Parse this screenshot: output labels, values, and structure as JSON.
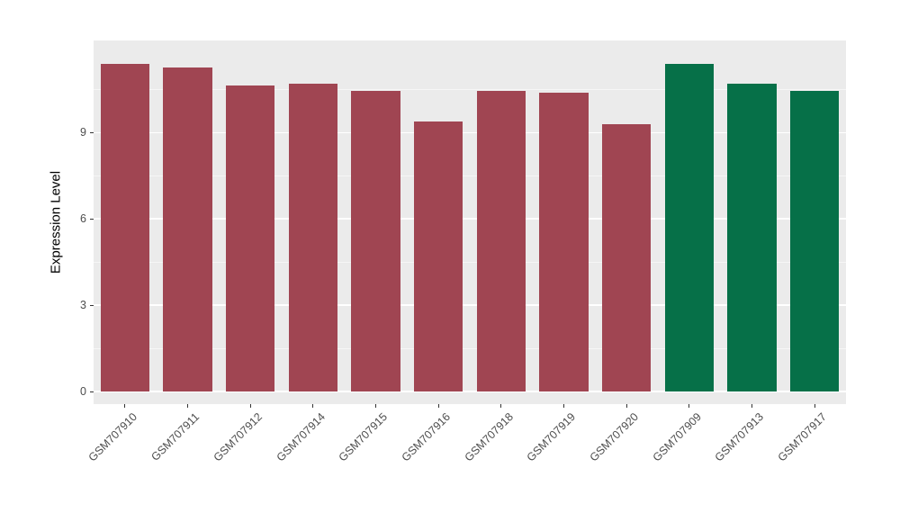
{
  "chart_data": {
    "type": "bar",
    "title": "",
    "xlabel": "",
    "ylabel": "Expression Level",
    "categories": [
      "GSM707910",
      "GSM707911",
      "GSM707912",
      "GSM707914",
      "GSM707915",
      "GSM707916",
      "GSM707918",
      "GSM707919",
      "GSM707920",
      "GSM707909",
      "GSM707913",
      "GSM707917"
    ],
    "values": [
      11.4,
      11.25,
      10.65,
      10.7,
      10.45,
      9.4,
      10.45,
      10.4,
      9.3,
      11.4,
      10.7,
      10.45
    ],
    "groups": [
      "red",
      "red",
      "red",
      "red",
      "red",
      "red",
      "red",
      "red",
      "red",
      "green",
      "green",
      "green"
    ],
    "colors": {
      "red": "#A04552",
      "green": "#067048"
    },
    "ylim": [
      0,
      12.2
    ],
    "yticks": [
      0,
      3,
      6,
      9
    ],
    "yticks_minor": [
      1.5,
      4.5,
      7.5,
      10.5
    ],
    "panel_background": "#EBEBEB",
    "grid_color": "#FFFFFF",
    "axis_text_color": "#4D4D4D",
    "legend": "none",
    "bar_width_fraction": 0.78
  }
}
